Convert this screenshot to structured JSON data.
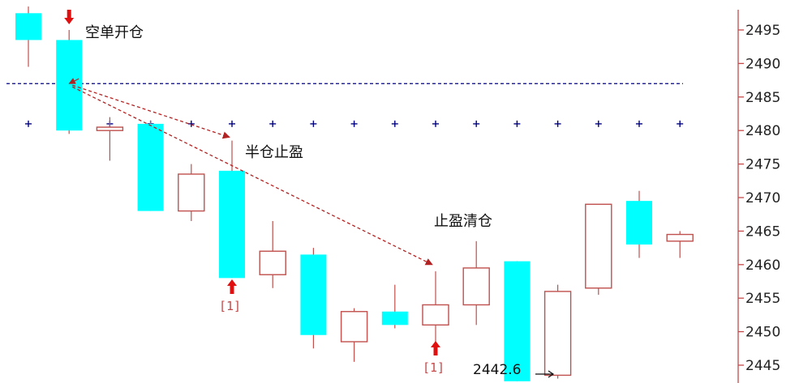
{
  "colors": {
    "up": "#c0504d",
    "down": "#00ffff",
    "down_wick": "#c0504d",
    "axis": "#c44a4a",
    "dashed_line": "#000080",
    "cross": "#000080",
    "arrow": "#e01010",
    "dotted_arrow": "#b22222"
  },
  "chart_data": {
    "type": "candlestick",
    "ylim": [
      2442,
      2498
    ],
    "y_ticks": [
      2445,
      2450,
      2455,
      2460,
      2465,
      2470,
      2475,
      2480,
      2485,
      2490,
      2495
    ],
    "y_tick_labels": [
      "2445",
      "2450",
      "2455",
      "2460",
      "2465",
      "2470",
      "2475",
      "2480",
      "2485",
      "2490",
      "2495"
    ],
    "candles": [
      {
        "open": 2497.5,
        "high": 2498.5,
        "low": 2489.5,
        "close": 2493.5
      },
      {
        "open": 2493.5,
        "high": 2495.0,
        "low": 2479.5,
        "close": 2480.0
      },
      {
        "open": 2480.0,
        "high": 2482.0,
        "low": 2475.5,
        "close": 2480.5
      },
      {
        "open": 2481.0,
        "high": 2481.5,
        "low": 2468.0,
        "close": 2468.0
      },
      {
        "open": 2468.0,
        "high": 2475.0,
        "low": 2466.5,
        "close": 2473.5
      },
      {
        "open": 2474.0,
        "high": 2478.5,
        "low": 2458.0,
        "close": 2458.0
      },
      {
        "open": 2458.5,
        "high": 2466.5,
        "low": 2456.5,
        "close": 2462.0
      },
      {
        "open": 2461.5,
        "high": 2462.5,
        "low": 2447.5,
        "close": 2449.5
      },
      {
        "open": 2448.5,
        "high": 2453.5,
        "low": 2445.5,
        "close": 2453.0
      },
      {
        "open": 2453.0,
        "high": 2457.0,
        "low": 2450.5,
        "close": 2451.0
      },
      {
        "open": 2451.0,
        "high": 2459.0,
        "low": 2448.5,
        "close": 2454.0
      },
      {
        "open": 2454.0,
        "high": 2463.5,
        "low": 2451.0,
        "close": 2459.5
      },
      {
        "open": 2460.5,
        "high": 2460.5,
        "low": 2442.6,
        "close": 2442.6
      },
      {
        "open": 2443.5,
        "high": 2457.0,
        "low": 2443.0,
        "close": 2456.0
      },
      {
        "open": 2456.5,
        "high": 2469.0,
        "low": 2455.5,
        "close": 2469.0
      },
      {
        "open": 2469.5,
        "high": 2471.0,
        "low": 2461.0,
        "close": 2463.0
      },
      {
        "open": 2463.5,
        "high": 2465.0,
        "low": 2461.0,
        "close": 2464.5
      }
    ],
    "horizontal_line": 2487,
    "marker_level": 2481,
    "min_price_label": "2442.6",
    "annotations": [
      {
        "text": "空单开仓",
        "candle": 1,
        "price": 2496.0
      },
      {
        "text": "半仓止盈",
        "candle": 5,
        "price": 2477.0
      },
      {
        "text": "止盈清仓",
        "candle": 10,
        "price": 2467.0
      }
    ],
    "signal_markers": [
      {
        "candle": 5,
        "label": "[1]"
      },
      {
        "candle": 10,
        "label": "[1]"
      }
    ]
  }
}
